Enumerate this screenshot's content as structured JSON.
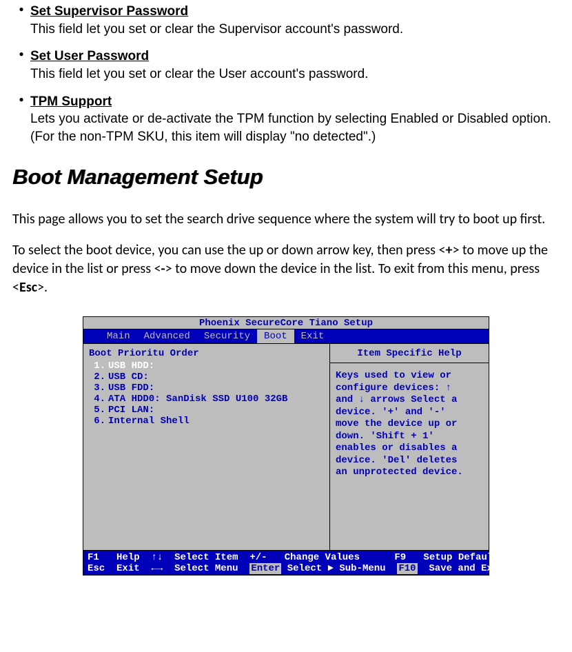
{
  "items": [
    {
      "title": "Set Supervisor Password",
      "desc": "This field let you set or clear the Supervisor account's password."
    },
    {
      "title": "Set User Password",
      "desc": "This field let you set or clear the User account's password."
    },
    {
      "title": "TPM Support",
      "desc": "Lets you activate or de-activate the TPM function by selecting Enabled or Disabled option. (For the non-TPM SKU, this item will display \"no detected\".)"
    }
  ],
  "section_heading": "Boot Management Setup",
  "paragraphs": {
    "p1": "This page allows you to set the search drive sequence where the system will try to boot up first.",
    "p2_a": "To select the boot device, you can use the up or down arrow key, then press <",
    "p2_plus": "+",
    "p2_b": "> to move up the device in the list or press <",
    "p2_minus": "-",
    "p2_c": "> to move down the device in the list. To exit from this menu, press <",
    "p2_esc": "Esc",
    "p2_d": ">."
  },
  "bios": {
    "title": "Phoenix SecureCore Tiano Setup",
    "tabs": [
      "Main",
      "Advanced",
      "Security",
      "Boot",
      "Exit"
    ],
    "active_tab_index": 3,
    "left_header": "Boot Prioritu Order",
    "boot_items": [
      {
        "num": "1.",
        "txt": "USB HDD:",
        "selected": true
      },
      {
        "num": "2.",
        "txt": "USB CD:",
        "selected": false
      },
      {
        "num": "3.",
        "txt": "USB FDD:",
        "selected": false
      },
      {
        "num": "4.",
        "txt": "ATA HDD0: SanDisk SSD U100 32GB",
        "selected": false
      },
      {
        "num": "5.",
        "txt": "PCI LAN:",
        "selected": false
      },
      {
        "num": "6.",
        "txt": "Internal Shell",
        "selected": false
      }
    ],
    "help_header": "Item Specific Help",
    "help_lines": [
      "Keys used to view or",
      "configure devices: ↑",
      "and ↓ arrows Select a",
      "device. '+' and '-'",
      "move the device up or",
      "down. 'Shift + 1'",
      "enables or disables a",
      "device. 'Del' deletes",
      "an unprotected device."
    ],
    "footer": {
      "row1": {
        "k1": "F1",
        "l1": "Help",
        "a1": "↑↓",
        "t1": "Select Item",
        "k2": "+/-",
        "l2": "Change Values",
        "k3": "F9",
        "l3": "Setup Defaults"
      },
      "row2": {
        "k1": "Esc",
        "l1": "Exit",
        "a1": "←→",
        "t1": "Select Menu",
        "k2": "Enter",
        "l2": "Select ► Sub-Menu",
        "k3": "F10",
        "l3": "Save and Exit"
      }
    }
  },
  "colors": {
    "bios_bg": "#bdbdbd",
    "bios_blue": "#0000b8",
    "white": "#ffffff",
    "black": "#000000"
  }
}
